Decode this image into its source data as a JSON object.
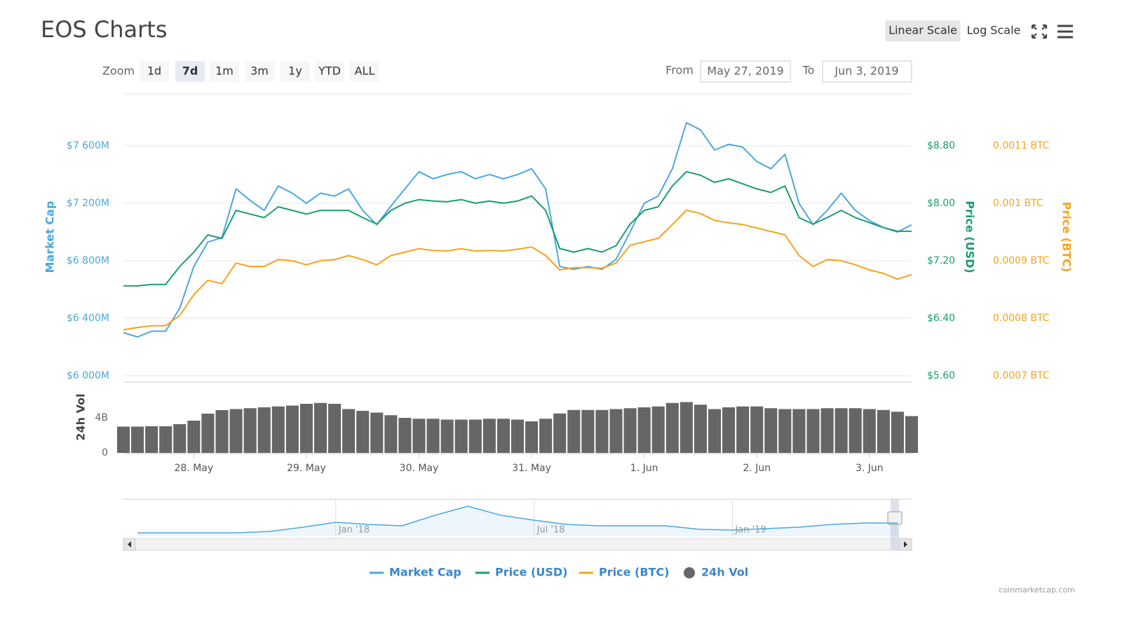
{
  "ui": {
    "title": "EOS Charts",
    "scale_buttons": [
      "Linear Scale",
      "Log Scale"
    ],
    "active_scale": 0,
    "zoom_label": "Zoom",
    "zoom_buttons": [
      "1d",
      "7d",
      "1m",
      "3m",
      "1y",
      "YTD",
      "ALL"
    ],
    "active_zoom": 1,
    "from_label": "From",
    "from_value": "May 27, 2019",
    "to_label": "To",
    "to_value": "Jun 3, 2019",
    "credit": "coinmarketcap.com"
  },
  "chart_data": {
    "type": "line",
    "categories": [
      null,
      null,
      null,
      null,
      null,
      "28. May",
      null,
      null,
      null,
      null,
      null,
      null,
      null,
      "29. May",
      null,
      null,
      null,
      null,
      null,
      null,
      null,
      "30. May",
      null,
      null,
      null,
      null,
      null,
      null,
      null,
      "31. May",
      null,
      null,
      null,
      null,
      null,
      null,
      null,
      "1. Jun",
      null,
      null,
      null,
      null,
      null,
      null,
      null,
      "2. Jun",
      null,
      null,
      null,
      null,
      null,
      null,
      null,
      "3. Jun",
      null,
      null,
      null
    ],
    "series": [
      {
        "name": "Market Cap",
        "color": "#4aa8e0",
        "axis": "y",
        "values": [
          6300,
          6270,
          6310,
          6310,
          6470,
          6760,
          6930,
          6960,
          7300,
          7220,
          7150,
          7320,
          7270,
          7200,
          7270,
          7250,
          7300,
          7150,
          7050,
          7180,
          7300,
          7420,
          7370,
          7400,
          7420,
          7370,
          7400,
          7370,
          7400,
          7440,
          7300,
          6760,
          6740,
          6760,
          6740,
          6810,
          7000,
          7200,
          7250,
          7440,
          7760,
          7710,
          7570,
          7610,
          7590,
          7490,
          7440,
          7540,
          7200,
          7050,
          7150,
          7270,
          7150,
          7080,
          7030,
          7000,
          7050
        ]
      },
      {
        "name": "Price (USD)",
        "color": "#1a9e6e",
        "axis": "y2",
        "values": [
          6.85,
          6.85,
          6.87,
          6.87,
          7.12,
          7.32,
          7.56,
          7.51,
          7.9,
          7.85,
          7.8,
          7.95,
          7.9,
          7.85,
          7.9,
          7.9,
          7.9,
          7.8,
          7.71,
          7.9,
          8.0,
          8.05,
          8.03,
          8.02,
          8.05,
          8.0,
          8.03,
          8.0,
          8.03,
          8.1,
          7.9,
          7.37,
          7.32,
          7.37,
          7.32,
          7.41,
          7.71,
          7.9,
          7.95,
          8.24,
          8.44,
          8.39,
          8.29,
          8.34,
          8.27,
          8.2,
          8.15,
          8.24,
          7.8,
          7.71,
          7.8,
          7.9,
          7.8,
          7.73,
          7.66,
          7.61,
          7.61
        ]
      },
      {
        "name": "Price (BTC)",
        "color": "#f7a21b",
        "axis": "y3",
        "values": [
          0.00078,
          0.000784,
          0.000787,
          0.000787,
          0.000805,
          0.000841,
          0.000866,
          0.00086,
          0.000896,
          0.00089,
          0.00089,
          0.000902,
          0.0009,
          0.000893,
          0.0009,
          0.000902,
          0.000909,
          0.000902,
          0.000893,
          0.000909,
          0.000915,
          0.000921,
          0.000918,
          0.000917,
          0.000921,
          0.000917,
          0.000918,
          0.000917,
          0.00092,
          0.000924,
          0.000909,
          0.000884,
          0.000888,
          0.000888,
          0.000887,
          0.000896,
          0.000927,
          0.000933,
          0.000939,
          0.000963,
          0.000988,
          0.000982,
          0.00097,
          0.000966,
          0.000963,
          0.000957,
          0.000951,
          0.000945,
          0.000909,
          0.00089,
          0.000902,
          0.0009,
          0.000893,
          0.000884,
          0.000878,
          0.000868,
          0.000876
        ]
      },
      {
        "name": "24h Vol",
        "color": "#666666",
        "axis": "vol",
        "type": "bar",
        "values": [
          3.0,
          3.0,
          3.04,
          3.04,
          3.28,
          3.68,
          4.48,
          4.88,
          5.0,
          5.1,
          5.2,
          5.3,
          5.4,
          5.6,
          5.7,
          5.6,
          5.0,
          4.8,
          4.6,
          4.3,
          4.0,
          3.9,
          3.9,
          3.8,
          3.8,
          3.8,
          3.9,
          3.9,
          3.8,
          3.6,
          3.9,
          4.5,
          4.9,
          4.9,
          4.9,
          5.0,
          5.1,
          5.2,
          5.3,
          5.7,
          5.8,
          5.5,
          5.0,
          5.2,
          5.3,
          5.3,
          5.1,
          5.0,
          5.0,
          5.0,
          5.1,
          5.1,
          5.1,
          5.0,
          4.9,
          4.7,
          4.2
        ]
      }
    ],
    "ylabel": "Market Cap",
    "ylim": [
      6000,
      7960
    ],
    "yticks": [
      {
        "value": 6000,
        "label": "$6 000M"
      },
      {
        "value": 6400,
        "label": "$6 400M"
      },
      {
        "value": 6800,
        "label": "$6 800M"
      },
      {
        "value": 7200,
        "label": "$7 200M"
      },
      {
        "value": 7600,
        "label": "$7 600M"
      }
    ],
    "y2label": "Price (USD)",
    "y2lim": [
      5.6,
      9.52
    ],
    "y2ticks": [
      {
        "value": 5.6,
        "label": "$5.60"
      },
      {
        "value": 6.4,
        "label": "$6.40"
      },
      {
        "value": 7.2,
        "label": "$7.20"
      },
      {
        "value": 8.0,
        "label": "$8.00"
      },
      {
        "value": 8.8,
        "label": "$8.80"
      }
    ],
    "y3label": "Price (BTC)",
    "y3lim": [
      0.0007,
      0.00119
    ],
    "y3ticks": [
      {
        "value": 0.0007,
        "label": "0.0007 BTC"
      },
      {
        "value": 0.0008,
        "label": "0.0008 BTC"
      },
      {
        "value": 0.0009,
        "label": "0.0009 BTC"
      },
      {
        "value": 0.001,
        "label": "0.001 BTC"
      },
      {
        "value": 0.0011,
        "label": "0.0011 BTC"
      }
    ],
    "vol_ylabel": "24h Vol",
    "vol_ylim": [
      0,
      8
    ],
    "vol_yticks": [
      0,
      {
        "value": 4,
        "label": "4B"
      }
    ],
    "grid": true,
    "legend": "bottom",
    "navigator": {
      "color": "#4aa8e0",
      "categories": [
        null,
        null,
        null,
        null,
        null,
        null,
        "Jan '18",
        null,
        null,
        null,
        null,
        null,
        "Jul '18",
        null,
        null,
        null,
        null,
        null,
        "Jan '19",
        null,
        null,
        null,
        null,
        null
      ],
      "values": [
        1570,
        1570,
        1570,
        1570,
        2200,
        4080,
        6270,
        5330,
        4700,
        9410,
        13490,
        9410,
        7220,
        5330,
        4700,
        4700,
        4700,
        3140,
        2820,
        3450,
        4080,
        5330,
        5960,
        5960
      ],
      "ylim": [
        0,
        16000
      ]
    }
  }
}
